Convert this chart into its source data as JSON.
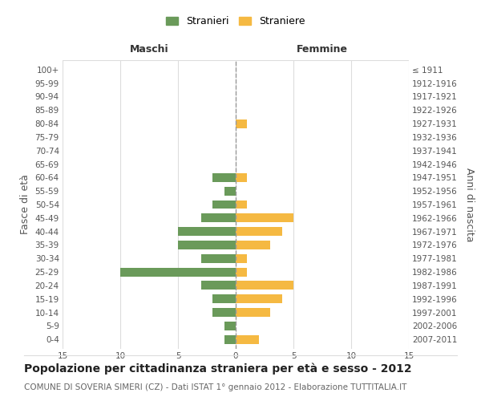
{
  "age_groups": [
    "0-4",
    "5-9",
    "10-14",
    "15-19",
    "20-24",
    "25-29",
    "30-34",
    "35-39",
    "40-44",
    "45-49",
    "50-54",
    "55-59",
    "60-64",
    "65-69",
    "70-74",
    "75-79",
    "80-84",
    "85-89",
    "90-94",
    "95-99",
    "100+"
  ],
  "birth_years": [
    "2007-2011",
    "2002-2006",
    "1997-2001",
    "1992-1996",
    "1987-1991",
    "1982-1986",
    "1977-1981",
    "1972-1976",
    "1967-1971",
    "1962-1966",
    "1957-1961",
    "1952-1956",
    "1947-1951",
    "1942-1946",
    "1937-1941",
    "1932-1936",
    "1927-1931",
    "1922-1926",
    "1917-1921",
    "1912-1916",
    "≤ 1911"
  ],
  "males": [
    1,
    1,
    2,
    2,
    3,
    10,
    3,
    5,
    5,
    3,
    2,
    1,
    2,
    0,
    0,
    0,
    0,
    0,
    0,
    0,
    0
  ],
  "females": [
    2,
    0,
    3,
    4,
    5,
    1,
    1,
    3,
    4,
    5,
    1,
    0,
    1,
    0,
    0,
    0,
    1,
    0,
    0,
    0,
    0
  ],
  "male_color": "#6a9a5a",
  "female_color": "#f5b942",
  "xlim": 15,
  "title": "Popolazione per cittadinanza straniera per età e sesso - 2012",
  "subtitle": "COMUNE DI SOVERIA SIMERI (CZ) - Dati ISTAT 1° gennaio 2012 - Elaborazione TUTTITALIA.IT",
  "ylabel_left": "Fasce di età",
  "ylabel_right": "Anni di nascita",
  "xlabel_maschi": "Maschi",
  "xlabel_femmine": "Femmine",
  "legend_male": "Stranieri",
  "legend_female": "Straniere",
  "bg_color": "#ffffff",
  "grid_color": "#dddddd",
  "center_line_color": "#999999",
  "title_fontsize": 10,
  "subtitle_fontsize": 7.5,
  "tick_fontsize": 7.5,
  "label_fontsize": 9,
  "header_fontsize": 9
}
